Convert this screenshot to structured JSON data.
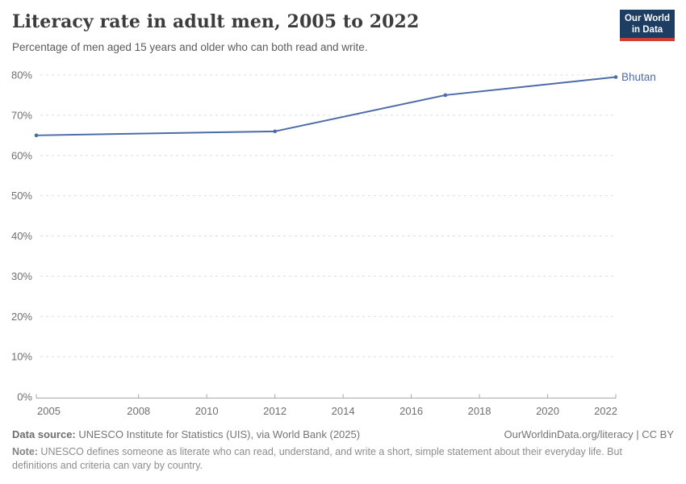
{
  "header": {
    "title": "Literacy rate in adult men, 2005 to 2022",
    "subtitle": "Percentage of men aged 15 years and older who can both read and write.",
    "logo": {
      "line1": "Our World",
      "line2": "in Data",
      "bg_color": "#1d3d63",
      "bar_color": "#cf3e35"
    }
  },
  "chart_data": {
    "type": "line",
    "title": "Literacy rate in adult men, 2005 to 2022",
    "xlabel": "",
    "ylabel": "",
    "xlim": [
      2005,
      2022
    ],
    "ylim": [
      0,
      80
    ],
    "grid": "horizontal-dashed",
    "x_ticks": [
      "2005",
      "2008",
      "2010",
      "2012",
      "2014",
      "2016",
      "2018",
      "2020",
      "2022"
    ],
    "y_ticks": [
      "0%",
      "10%",
      "20%",
      "30%",
      "40%",
      "50%",
      "60%",
      "70%",
      "80%"
    ],
    "y_tick_values": [
      0,
      10,
      20,
      30,
      40,
      50,
      60,
      70,
      80
    ],
    "series": [
      {
        "name": "Bhutan",
        "color": "#4d6ba8",
        "x": [
          2005,
          2012,
          2017,
          2022
        ],
        "values": [
          65,
          66,
          75,
          79.5
        ]
      }
    ],
    "end_label": "Bhutan",
    "legend_position": "line-end"
  },
  "footer": {
    "source_label": "Data source:",
    "source_text": " UNESCO Institute for Statistics (UIS), via World Bank (2025)",
    "rights": "OurWorldinData.org/literacy | CC BY",
    "note_label": "Note:",
    "note_text": " UNESCO defines someone as literate who can read, understand, and write a short, simple statement about their everyday life. But definitions and criteria can vary by country."
  },
  "theme": {
    "grid_color": "#dcdcdc",
    "axis_color": "#a8a8a8",
    "tick_label_color": "#6e6e6e"
  }
}
